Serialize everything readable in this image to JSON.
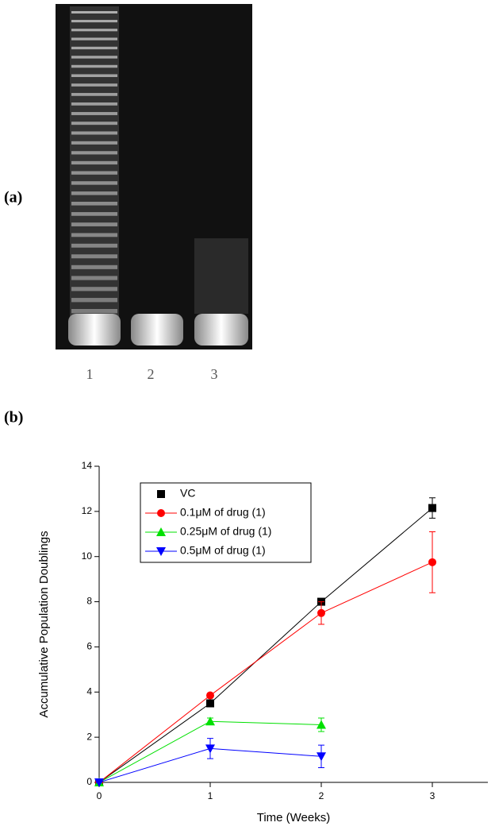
{
  "panel_a": {
    "label": "(a)",
    "lanes": [
      "1",
      "2",
      "3"
    ]
  },
  "panel_b": {
    "label": "(b)"
  },
  "chart_data": {
    "type": "line",
    "xlabel": "Time (Weeks)",
    "ylabel": "Accumulative Population Doublings",
    "x": [
      0,
      1,
      2,
      3
    ],
    "xlim": [
      0,
      3.5
    ],
    "xticks": [
      0,
      1,
      2,
      3
    ],
    "ylim": [
      0,
      14
    ],
    "yticks": [
      0,
      2,
      4,
      6,
      8,
      10,
      12,
      14
    ],
    "legend": "upper left",
    "series": [
      {
        "name": "VC",
        "color": "#000000",
        "marker": "square",
        "values": [
          0,
          3.5,
          8.0,
          12.15
        ],
        "errors": [
          0,
          0.1,
          0.1,
          0.45
        ]
      },
      {
        "name": "0.1μM of drug (1)",
        "color": "#ff0000",
        "marker": "circle",
        "values": [
          0,
          3.85,
          7.5,
          9.75
        ],
        "errors": [
          0,
          0.1,
          0.5,
          1.35
        ]
      },
      {
        "name": "0.25μM of drug (1)",
        "color": "#00e000",
        "marker": "triangle-up",
        "values": [
          0,
          2.7,
          2.55,
          null
        ],
        "errors": [
          0,
          0.15,
          0.3,
          null
        ]
      },
      {
        "name": "0.5μM of drug (1)",
        "color": "#0000ff",
        "marker": "triangle-down",
        "values": [
          0,
          1.5,
          1.15,
          null
        ],
        "errors": [
          0,
          0.45,
          0.5,
          null
        ]
      }
    ]
  }
}
